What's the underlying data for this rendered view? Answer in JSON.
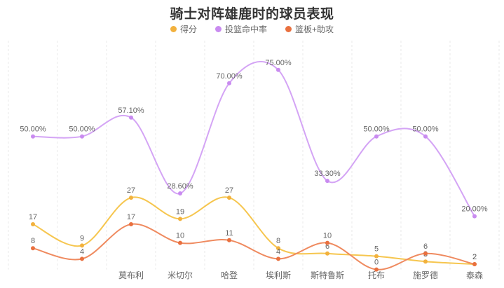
{
  "page": {
    "background": "#ffffff"
  },
  "header": {
    "title": "骑士对阵雄鹿时的球员表现",
    "title_color": "#333333"
  },
  "legend": {
    "position": "top",
    "text_color": "#666666",
    "items": [
      {
        "label": "得分",
        "color": "#f2b13d"
      },
      {
        "label": "投篮命中率",
        "color": "#c98bf0"
      },
      {
        "label": "篮板+助攻",
        "color": "#e9703f"
      }
    ]
  },
  "chart_data": {
    "type": "line",
    "smooth": true,
    "title": "骑士对阵雄鹿时的球员表现",
    "xlabel": "",
    "ylabel": "",
    "ylim": [
      0,
      86
    ],
    "legend_position": "top",
    "grid": {
      "vertical_dashed": true,
      "horizontal": false,
      "line_color": "#e9e9e9"
    },
    "label_color": "#666666",
    "axis_label_color": "#666666",
    "categories": [
      "",
      "",
      "莫布利",
      "米切尔",
      "哈登",
      "埃利斯",
      "斯特鲁斯",
      "托布",
      "施罗德",
      "泰森"
    ],
    "series": [
      {
        "name": "得分",
        "color": "#f6c64f",
        "marker_color": "#f2b13d",
        "values": [
          17,
          9,
          27,
          19,
          27,
          8,
          6,
          5,
          3,
          2
        ],
        "labels": [
          "17",
          "9",
          "27",
          "19",
          "27",
          "8",
          "6",
          "5",
          "3",
          "2"
        ]
      },
      {
        "name": "投篮命中率",
        "color": "#d4a4f5",
        "marker_color": "#c98bf0",
        "values": [
          50,
          50,
          57.1,
          28.6,
          70,
          75,
          33.3,
          50,
          50,
          20
        ],
        "labels": [
          "50.00%",
          "50.00%",
          "57.10%",
          "28.60%",
          "70.00%",
          "75.00%",
          "33.30%",
          "50.00%",
          "50.00%",
          "20.00%"
        ]
      },
      {
        "name": "篮板+助攻",
        "color": "#ef8a5f",
        "marker_color": "#e9703f",
        "values": [
          8,
          4,
          17,
          10,
          11,
          4,
          10,
          0,
          6,
          2
        ],
        "labels": [
          "8",
          "4",
          "17",
          "10",
          "11",
          "4",
          "10",
          "0",
          "6",
          "2"
        ]
      }
    ]
  }
}
